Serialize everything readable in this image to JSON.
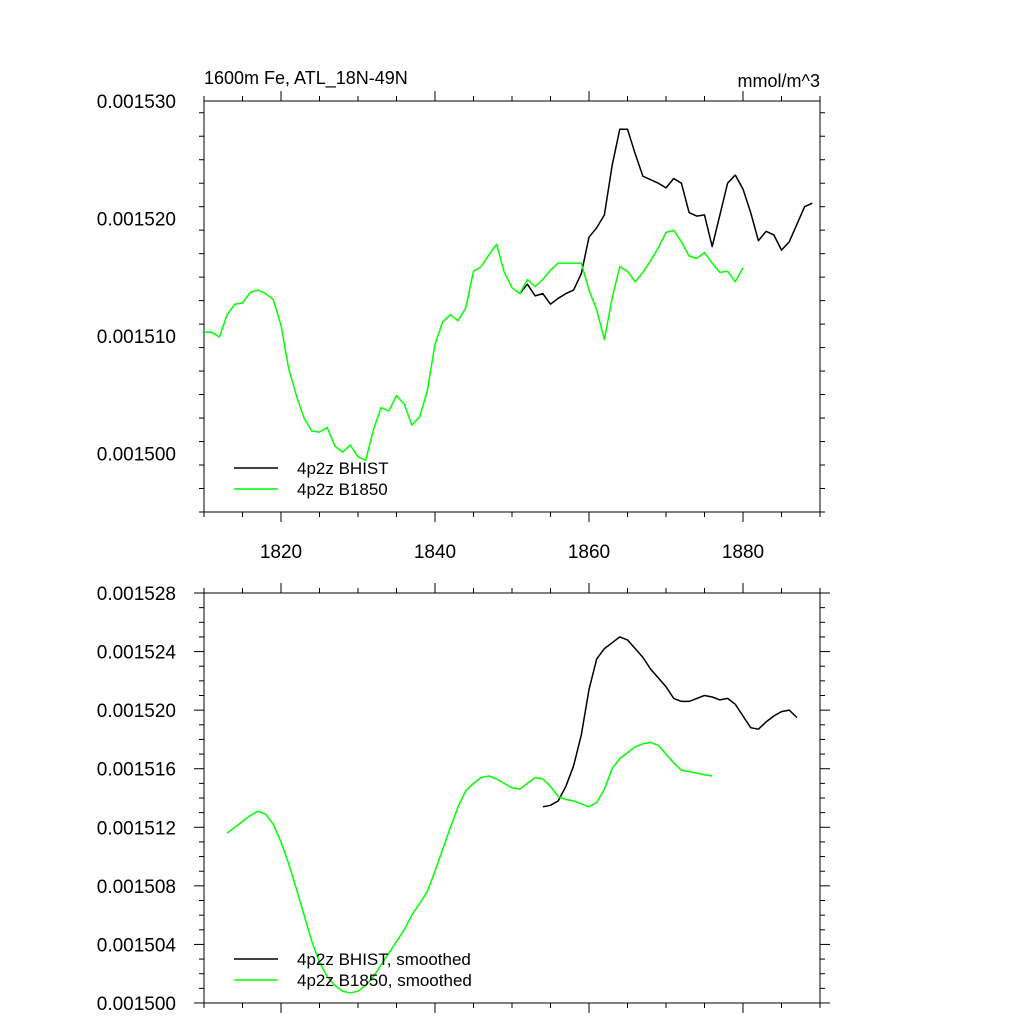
{
  "chart_data": [
    {
      "type": "line",
      "title": "1600m Fe, ATL_18N-49N",
      "units": "mmol/m^3",
      "xlim": [
        1810,
        1890
      ],
      "ylim": [
        0.001495,
        0.00153
      ],
      "xticks": [
        1820,
        1840,
        1860,
        1880
      ],
      "xtick_labels": [
        "1820",
        "1840",
        "1860",
        "1880"
      ],
      "yticks": [
        0.0015,
        0.00151,
        0.00152,
        0.00153
      ],
      "ytick_labels": [
        "0.001500",
        "0.001510",
        "0.001520",
        "0.001530"
      ],
      "legend_location": "bottom-left",
      "series": [
        {
          "name": "4p2z BHIST",
          "color": "#000000",
          "x": [
            1851,
            1852,
            1853,
            1854,
            1855,
            1856,
            1857,
            1858,
            1859,
            1860,
            1861,
            1862,
            1863,
            1864,
            1865,
            1866,
            1867,
            1868,
            1869,
            1870,
            1871,
            1872,
            1873,
            1874,
            1875,
            1876,
            1877,
            1878,
            1879,
            1880,
            1881,
            1882,
            1883,
            1884,
            1885,
            1886,
            1887,
            1888,
            1889
          ],
          "y": [
            0.0015136,
            0.0015144,
            0.0015134,
            0.0015136,
            0.0015127,
            0.0015132,
            0.0015136,
            0.0015139,
            0.0015153,
            0.0015184,
            0.0015192,
            0.0015203,
            0.0015245,
            0.0015276,
            0.0015276,
            0.0015255,
            0.0015236,
            0.0015233,
            0.001523,
            0.0015226,
            0.0015234,
            0.001523,
            0.0015205,
            0.0015202,
            0.0015203,
            0.0015176,
            0.0015203,
            0.001523,
            0.0015237,
            0.0015225,
            0.0015205,
            0.0015181,
            0.0015189,
            0.0015186,
            0.0015173,
            0.001518,
            0.0015195,
            0.001521,
            0.0015213
          ]
        },
        {
          "name": "4p2z B1850",
          "color": "#00ff00",
          "x": [
            1810,
            1811,
            1812,
            1813,
            1814,
            1815,
            1816,
            1817,
            1818,
            1819,
            1820,
            1821,
            1822,
            1823,
            1824,
            1825,
            1826,
            1827,
            1828,
            1829,
            1830,
            1831,
            1832,
            1833,
            1834,
            1835,
            1836,
            1837,
            1838,
            1839,
            1840,
            1841,
            1842,
            1843,
            1844,
            1845,
            1846,
            1847,
            1848,
            1849,
            1850,
            1851,
            1852,
            1853,
            1854,
            1855,
            1856,
            1857,
            1858,
            1859,
            1860,
            1861,
            1862,
            1863,
            1864,
            1865,
            1866,
            1867,
            1868,
            1869,
            1870,
            1871,
            1872,
            1873,
            1874,
            1875,
            1876,
            1877,
            1878,
            1879,
            1880
          ],
          "y": [
            0.0015103,
            0.0015103,
            0.0015099,
            0.0015118,
            0.0015127,
            0.0015128,
            0.0015137,
            0.0015139,
            0.0015136,
            0.0015131,
            0.0015109,
            0.0015072,
            0.0015049,
            0.001503,
            0.0015019,
            0.0015018,
            0.0015022,
            0.0015006,
            0.0015001,
            0.0015007,
            0.0014997,
            0.0014994,
            0.001502,
            0.0015039,
            0.0015036,
            0.0015049,
            0.0015042,
            0.0015024,
            0.0015031,
            0.0015053,
            0.0015093,
            0.0015112,
            0.0015118,
            0.0015113,
            0.0015124,
            0.0015155,
            0.0015159,
            0.0015169,
            0.0015178,
            0.0015154,
            0.0015141,
            0.0015136,
            0.0015148,
            0.0015142,
            0.0015148,
            0.0015156,
            0.0015162,
            0.0015162,
            0.0015162,
            0.0015162,
            0.0015139,
            0.0015122,
            0.0015097,
            0.0015132,
            0.0015159,
            0.0015155,
            0.0015146,
            0.0015154,
            0.0015164,
            0.0015175,
            0.0015188,
            0.001519,
            0.001518,
            0.0015168,
            0.0015166,
            0.0015171,
            0.0015162,
            0.0015154,
            0.0015155,
            0.0015146,
            0.0015158
          ]
        }
      ]
    },
    {
      "type": "line",
      "title": "",
      "xlim": [
        1810,
        1890
      ],
      "ylim": [
        0.0015,
        0.001528
      ],
      "xticks": [
        1820,
        1840,
        1860,
        1880
      ],
      "xtick_labels": [],
      "yticks": [
        0.0015,
        0.001504,
        0.001508,
        0.001512,
        0.001516,
        0.00152,
        0.001524,
        0.001528
      ],
      "ytick_labels": [
        "0.001500",
        "0.001504",
        "0.001508",
        "0.001512",
        "0.001516",
        "0.001520",
        "0.001524",
        "0.001528"
      ],
      "legend_location": "bottom-left",
      "series": [
        {
          "name": "4p2z BHIST, smoothed",
          "color": "#000000",
          "x": [
            1854,
            1855,
            1856,
            1857,
            1858,
            1859,
            1860,
            1861,
            1862,
            1863,
            1864,
            1865,
            1866,
            1867,
            1868,
            1869,
            1870,
            1871,
            1872,
            1873,
            1874,
            1875,
            1876,
            1877,
            1878,
            1879,
            1880,
            1881,
            1882,
            1883,
            1884,
            1885,
            1886,
            1887
          ],
          "y": [
            0.0015134,
            0.0015135,
            0.0015138,
            0.0015148,
            0.0015162,
            0.0015183,
            0.0015214,
            0.0015235,
            0.0015242,
            0.0015246,
            0.001525,
            0.0015248,
            0.0015242,
            0.0015236,
            0.0015228,
            0.0015222,
            0.0015216,
            0.0015208,
            0.0015206,
            0.0015206,
            0.0015208,
            0.001521,
            0.0015209,
            0.0015207,
            0.0015208,
            0.0015204,
            0.0015196,
            0.0015188,
            0.0015187,
            0.0015192,
            0.0015196,
            0.0015199,
            0.00152,
            0.0015195
          ]
        },
        {
          "name": "4p2z B1850, smoothed",
          "color": "#00ff00",
          "x": [
            1813,
            1814,
            1815,
            1816,
            1817,
            1818,
            1819,
            1820,
            1821,
            1822,
            1823,
            1824,
            1825,
            1826,
            1827,
            1828,
            1829,
            1830,
            1831,
            1832,
            1833,
            1834,
            1835,
            1836,
            1837,
            1838,
            1839,
            1840,
            1841,
            1842,
            1843,
            1844,
            1845,
            1846,
            1847,
            1848,
            1849,
            1850,
            1851,
            1852,
            1853,
            1854,
            1855,
            1856,
            1857,
            1858,
            1859,
            1860,
            1861,
            1862,
            1863,
            1864,
            1865,
            1866,
            1867,
            1868,
            1869,
            1870,
            1871,
            1872,
            1873,
            1874,
            1875,
            1876
          ],
          "y": [
            0.0015116,
            0.001512,
            0.0015124,
            0.0015128,
            0.0015131,
            0.0015129,
            0.0015122,
            0.001511,
            0.0015095,
            0.0015078,
            0.001506,
            0.0015042,
            0.0015028,
            0.0015018,
            0.0015012,
            0.0015008,
            0.0015007,
            0.0015008,
            0.0015012,
            0.0015018,
            0.0015026,
            0.0015034,
            0.0015042,
            0.001505,
            0.001506,
            0.0015068,
            0.0015076,
            0.001509,
            0.0015105,
            0.001512,
            0.0015134,
            0.0015145,
            0.001515,
            0.0015154,
            0.0015155,
            0.0015153,
            0.001515,
            0.0015147,
            0.0015146,
            0.001515,
            0.0015154,
            0.0015153,
            0.0015148,
            0.0015141,
            0.0015139,
            0.0015138,
            0.0015136,
            0.0015134,
            0.0015137,
            0.0015146,
            0.001516,
            0.0015167,
            0.0015171,
            0.0015175,
            0.0015177,
            0.0015178,
            0.0015176,
            0.001517,
            0.0015164,
            0.0015159,
            0.0015158,
            0.0015157,
            0.0015156,
            0.0015155
          ]
        }
      ]
    }
  ]
}
